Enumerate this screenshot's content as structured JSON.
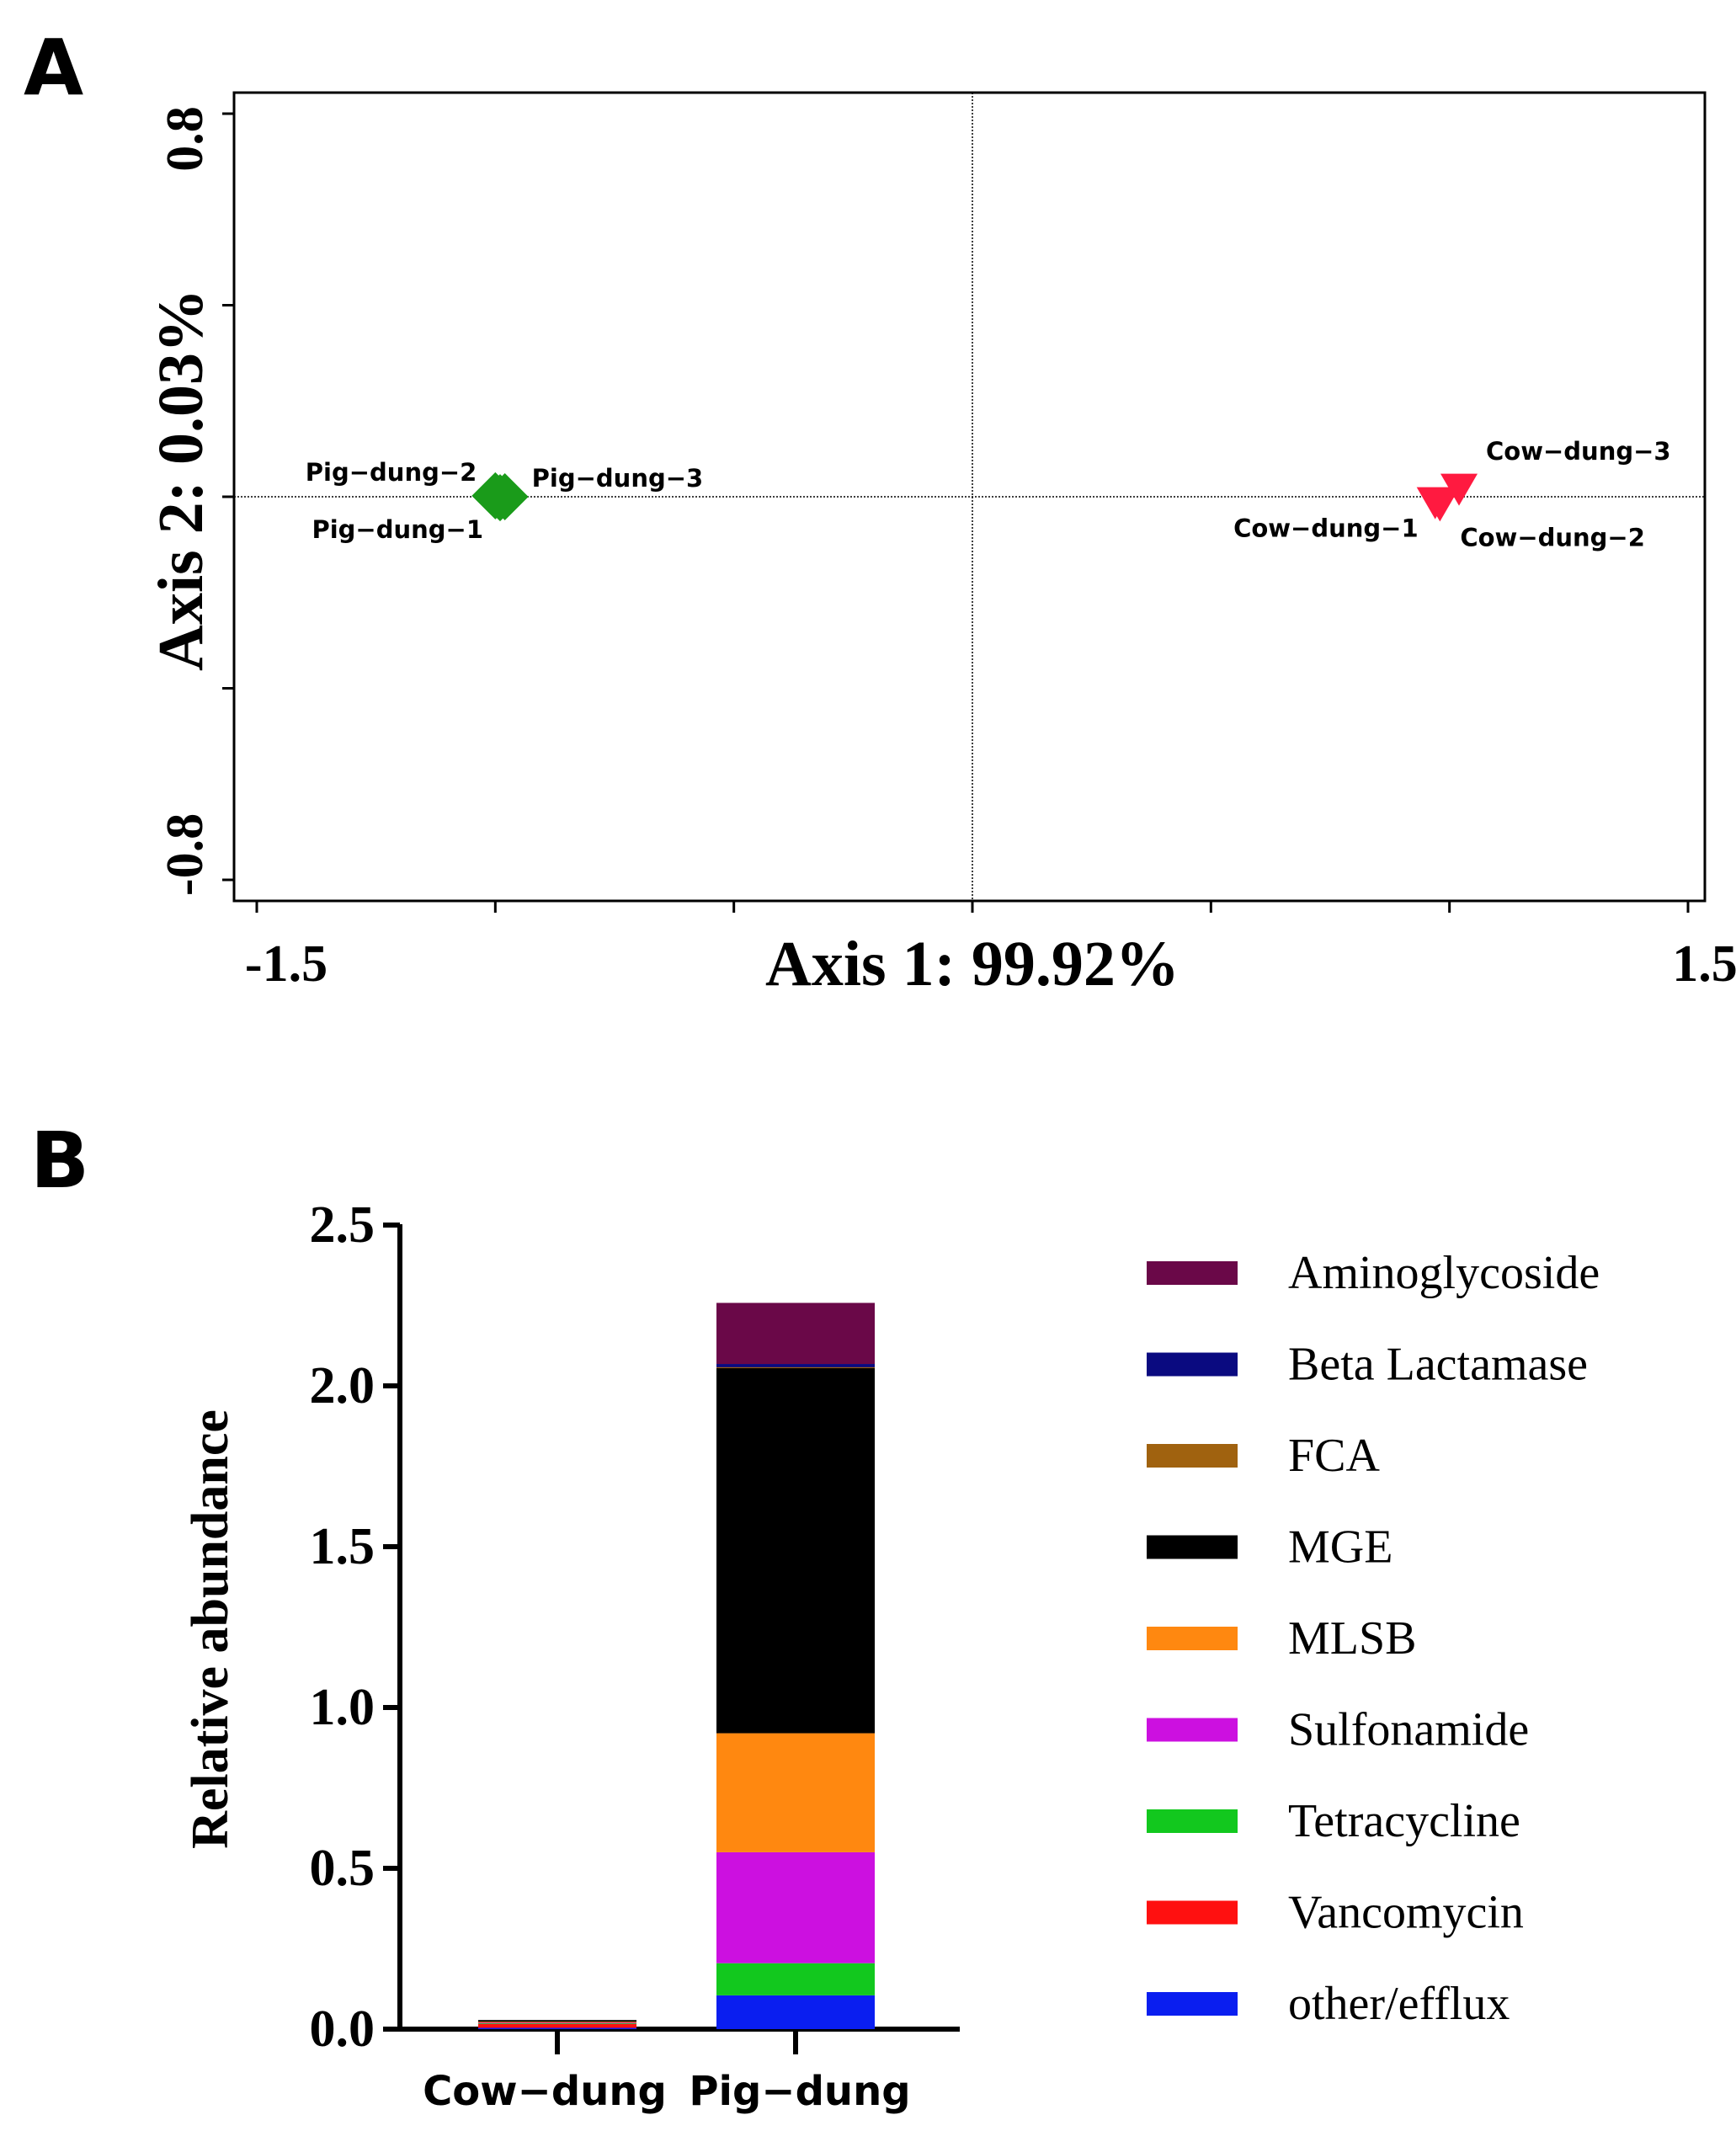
{
  "chart_data": [
    {
      "panel": "A",
      "type": "scatter",
      "xlabel": "Axis 1:   99.92%",
      "ylabel": "Axis 2:   0.03%",
      "xlim": [
        -1.5,
        1.5
      ],
      "ylim": [
        -0.8,
        0.8
      ],
      "x_tick_labels": [
        "-1.5",
        "1.5"
      ],
      "y_tick_labels": [
        "-0.8",
        "0.8"
      ],
      "reference_lines": {
        "x": 0,
        "y": 0
      },
      "series": [
        {
          "name": "Pig-dung",
          "marker": "diamond",
          "color": "#1a9b1a",
          "points": [
            {
              "label": "Pig−dung−1",
              "x": -0.99,
              "y": -0.002
            },
            {
              "label": "Pig−dung−2",
              "x": -1.0,
              "y": 0.002
            },
            {
              "label": "Pig−dung−3",
              "x": -0.98,
              "y": 0.0
            }
          ]
        },
        {
          "name": "Cow-dung",
          "marker": "triangle-down",
          "color": "#ff1a40",
          "points": [
            {
              "label": "Cow−dung−1",
              "x": 0.97,
              "y": -0.01
            },
            {
              "label": "Cow−dung−2",
              "x": 0.98,
              "y": -0.015
            },
            {
              "label": "Cow−dung−3",
              "x": 1.02,
              "y": 0.018
            }
          ]
        }
      ]
    },
    {
      "panel": "B",
      "type": "bar",
      "stacked": true,
      "ylabel": "Relative abundance",
      "ylim": [
        0,
        2.5
      ],
      "y_ticks": [
        "0.0",
        "0.5",
        "1.0",
        "1.5",
        "2.0",
        "2.5"
      ],
      "categories": [
        "Cow−dung",
        "Pig−dung"
      ],
      "legend_position": "right",
      "series": [
        {
          "name": "other/efflux",
          "color": "#0a1ef0",
          "values": [
            0.004,
            0.105
          ]
        },
        {
          "name": "Vancomycin",
          "color": "#ff1010",
          "values": [
            0.012,
            0.0
          ]
        },
        {
          "name": "Tetracycline",
          "color": "#12c81e",
          "values": [
            0.002,
            0.1
          ]
        },
        {
          "name": "Sulfonamide",
          "color": "#cc10e0",
          "values": [
            0.002,
            0.345
          ]
        },
        {
          "name": "MLSB",
          "color": "#ff8810",
          "values": [
            0.003,
            0.37
          ]
        },
        {
          "name": "MGE",
          "color": "#000000",
          "values": [
            0.001,
            1.135
          ]
        },
        {
          "name": "FCA",
          "color": "#a0620f",
          "values": [
            0.0,
            0.003
          ]
        },
        {
          "name": "Beta Lactamase",
          "color": "#0a0a80",
          "values": [
            0.0,
            0.01
          ]
        },
        {
          "name": "Aminoglycoside",
          "color": "#6a0848",
          "values": [
            0.0,
            0.19
          ]
        }
      ],
      "legend_order": [
        "Aminoglycoside",
        "Beta Lactamase",
        "FCA",
        "MGE",
        "MLSB",
        "Sulfonamide",
        "Tetracycline",
        "Vancomycin",
        "other/efflux"
      ]
    }
  ]
}
